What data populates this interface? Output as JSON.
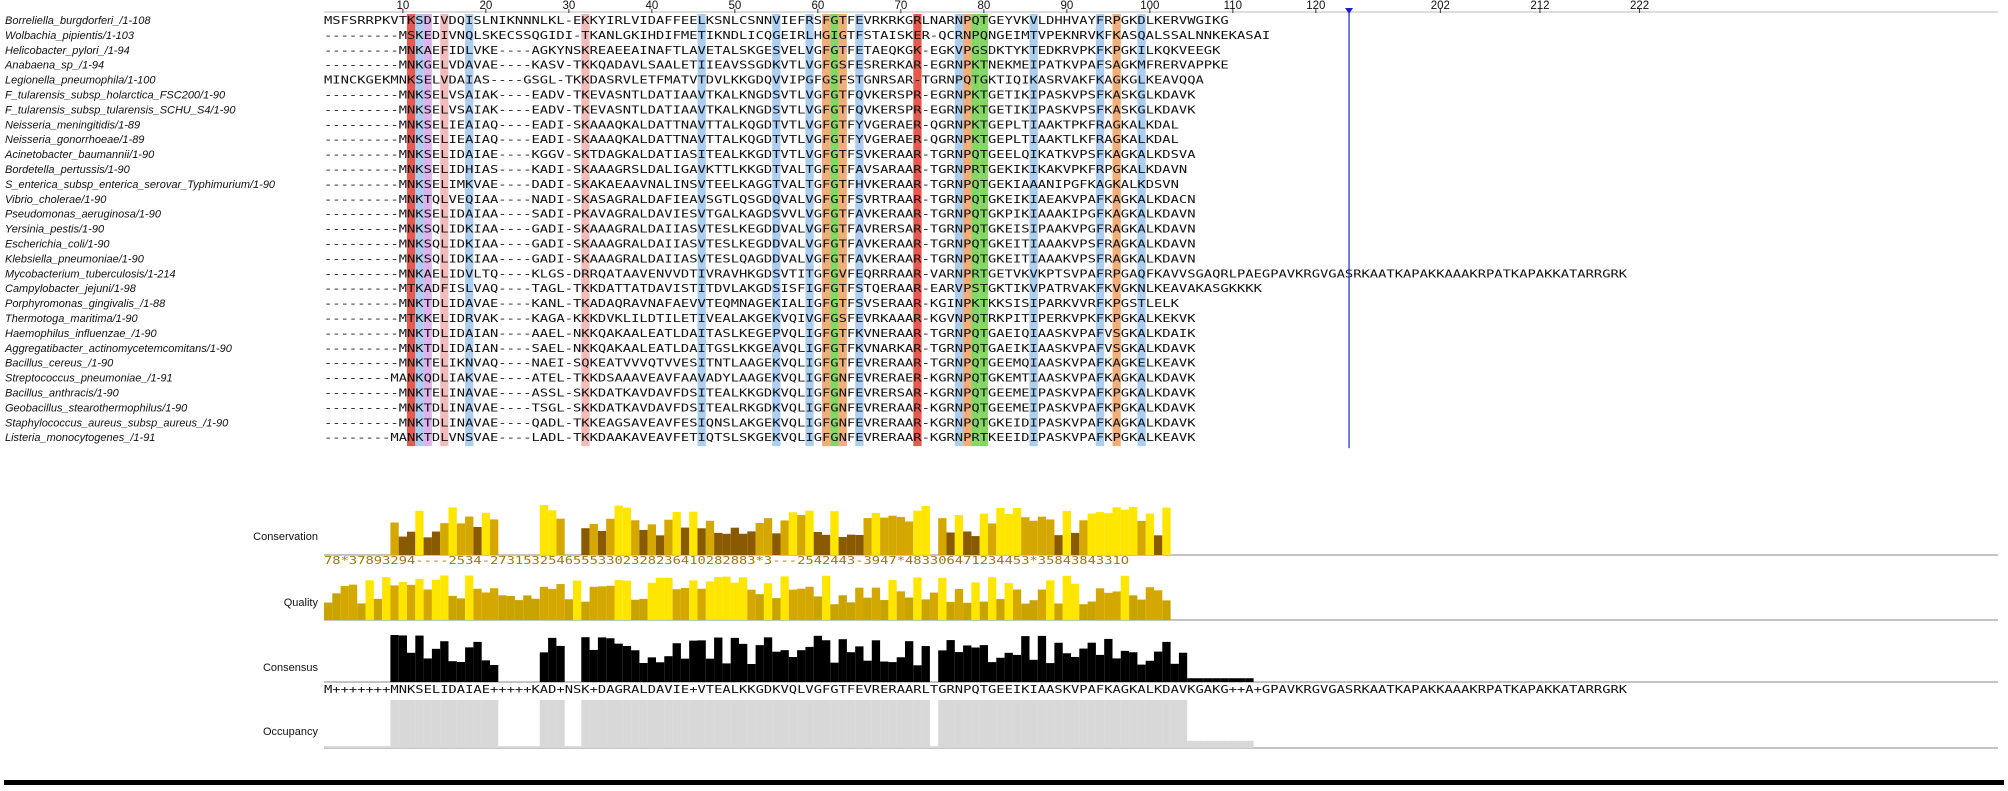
{
  "ruler": {
    "ticks": [
      "10",
      "20",
      "30",
      "40",
      "50",
      "60",
      "70",
      "80",
      "90",
      "100",
      "110",
      "120",
      "202",
      "212",
      "222"
    ]
  },
  "sequences": [
    {
      "name": "Borreliella_burgdorferi_/1-108",
      "seq": "MSFSRRPKVTKSDIVDQISLNIKNNNLKL-EKKYIRLVIDAFFEELKSNLCSNNVIEFRSFGTFEVRKRKGRLNARNPQTGEYVKVLDHHVAYFRPGKDLKERVWGIKG"
    },
    {
      "name": "Wolbachia_pipientis/1-103",
      "seq": "---------MSKEDIVNQLSKECSSQGIDI-TKANLGKIHDIFMETIKNDLICQGEIRLHGIGTFSTAISKER-QCRNPQNGEIMTVPEKNRVKFKASQALSSALNNKEKASAI"
    },
    {
      "name": "Helicobacter_pylori_/1-94",
      "seq": "---------MNKAEFIDLVKE----AGKYNSKREAEEAINAFTLAVETALSKGESVELVGFGTFETAEQKGK-EGKVPGSDKTYKTEDKRVPKFKPGKILKQKVEEGK"
    },
    {
      "name": "Anabaena_sp_/1-94",
      "seq": "---------MNKGELVDAVAE----KASV-TKKQADAVLSAALETIIEAVSSGDKVTLVGFGSFESRERKAR-EGRNPKTNEKMEIPATKVPAFSAGKMFRERVAPPKE"
    },
    {
      "name": "Legionella_pneumophila/1-100",
      "seq": "MINCKGEKMNKSELVDAIAS----GSGL-TKKDASRVLETFMATVTDVLKKGDQVVIPGFGSFSTGNRSAR-TGRNPQTGKTIQIKASRVAKFKAGKGLKEAVQQA"
    },
    {
      "name": "F_tularensis_subsp_holarctica_FSC200/1-90",
      "seq": "---------MNKSELVSAIAK----EADV-TKEVASNTLDATIAAVTKALKNGDSVTLVGFGTFQVKERSPR-EGRNPKTGETIKIPASKVPSFKASKGLKDAVK"
    },
    {
      "name": "F_tularensis_subsp_tularensis_SCHU_S4/1-90",
      "seq": "---------MNKSELVSAIAK----EADV-TKEVASNTLDATIAAVTKALKNGDSVTLVGFGTFQVKERSPR-EGRNPKTGETIKIPASKVPSFKASKGLKDAVK"
    },
    {
      "name": "Neisseria_meningitidis/1-89",
      "seq": "---------MNKSELIEAIAQ----EADI-SKAAAQKALDATTNAVTTALKQGDTVTLVGFGTFYVGERAER-QGRNPKTGEPLTIAAKTPKFRAGKALKDAL"
    },
    {
      "name": "Neisseria_gonorrhoeae/1-89",
      "seq": "---------MNKSELIEAIAQ----EADI-SKAAAQKALDATTNAVTTALKQGDTVTLVGFGTFYVGERAER-QGRNPKTGEPLTIAAKTLKFRAGKALKDAL"
    },
    {
      "name": "Acinetobacter_baumannii/1-90",
      "seq": "---------MNKSELIDAIAE----KGGV-SKTDAGKALDATIASITEALKKGDTVTLVGFGTFSVKERAAR-TGRNPQTGEELQIKATKVPSFKAGKALKDSVA"
    },
    {
      "name": "Bordetella_pertussis/1-90",
      "seq": "---------MNKSELIDHIAS----KADI-SKAAAGRSLDALIGAVKTTLKKGDTVALTGFGTFAVSARAAR-TGRNPRTGEKIKIKAKVPKFRPGKALKDAVN"
    },
    {
      "name": "S_enterica_subsp_enterica_serovar_Typhimurium/1-90",
      "seq": "---------MNKSELIMKVAE----DADI-SKAKAEAAVNALINSVTEELKAGGTVALTGFGTFHVKERAAR-TGRNPQTGEKIAAANIPGFKAGKALKDSVN"
    },
    {
      "name": "Vibrio_cholerae/1-90",
      "seq": "---------MNKTQLVEQIAA----NADI-SKASAGRALDAFIEAVSGTLQSGDQVALVGFGTFSVRTRAAR-TGRNPQTGKEIKIAEAKVPAFKAGKALKDACN"
    },
    {
      "name": "Pseudomonas_aeruginosa/1-90",
      "seq": "---------MNKSELIDAIAA----SADI-PKAVAGRALDAVIESVTGALKAGDSVVLVGFGTFAVKERAAR-TGRNPQTGKPIKIAAAKIPGFKAGKALKDAVN"
    },
    {
      "name": "Yersinia_pestis/1-90",
      "seq": "---------MNKSQLIDKIAA----GADI-SKAAAGRALDAIIASVTESLKEGDDVALVGFGTFAVRERSAR-TGRNPQTGKEISIPAAKVPGFRAGKALKDAVN"
    },
    {
      "name": "Escherichia_coli/1-90",
      "seq": "---------MNKSQLIDKIAA----GADI-SKAAAGRALDAIIASVTESLKEGDDVALVGFGTFAVKERAAR-TGRNPQTGKEITIAAAKVPSFRAGKALKDAVN"
    },
    {
      "name": "Klebsiella_pneumoniae/1-90",
      "seq": "---------MNKSQLIDKIAA----GADI-SKAAAGRALDAIIASVTESLQAGDDVALVGFGTFAVKERAAR-TGRNPQTGKEITIAAAKVPSFRAGKALKDAVN"
    },
    {
      "name": "Mycobacterium_tuberculosis/1-214",
      "seq": "---------MNKAELIDVLTQ----KLGS-DRRQATAAVENVVDTIVRAVHKGDSVTITGFGVFEQRRRAAR-VARNPRTGETVKVKPTSVPAFRPGAQFKAVVSGAQRLPAEGPAVKRGVGASRKAATKAPAKKAAAKRPATKAPAKKATARRGRK"
    },
    {
      "name": "Campylobacter_jejuni/1-98",
      "seq": "---------MTKADFISLVAQ----TAGL-TKKDATTATDAVISTITDVLAKGDSISFIGFGTFSTQERAAR-EARVPSTGKTIKVPATRVAKFKVGKNLKEAVAKASGKKKK"
    },
    {
      "name": "Porphyromonas_gingivalis_/1-88",
      "seq": "---------MNKTDLIDAVAE----KANL-TKADAQRAVNAFAEVVTEQMNAGEKIALIGFGTFSVSERAAR-KGINPKTKKSISIPARKVVRFKPGSTLELK"
    },
    {
      "name": "Thermotoga_maritima/1-90",
      "seq": "---------MTKKELIDRVAK----KAGA-KKKDVKLILDTILETIVEALAKGEKVQIVGFGSFEVRKAAAR-KGVNPQTRKPITIPERKVPKFKPGKALKEKVK"
    },
    {
      "name": "Haemophilus_influenzae_/1-90",
      "seq": "---------MNKTDLIDAIAN----AAEL-NKKQAKAALEATLDAITASLKEGEPVQLIGFGTFKVNERAAR-TGRNPQTGAEIQIAASKVPAFVSGKALKDAIK"
    },
    {
      "name": "Aggregatibacter_actinomycetemcomitans/1-90",
      "seq": "---------MNKTDLIDAIAN----SAEL-NKKQAKAALEATLDAITGSLKKGEAVQLIGFGTFKVNARKAR-TGRNPQTGAEIKIAASKVPAFVSGKALKDAVK"
    },
    {
      "name": "Bacillus_cereus_/1-90",
      "seq": "---------MNKTELIKNVAQ----NAEI-SQKEATVVVQTVVESITNTLAAGEKVQLIGFGTFEVRERAAR-TGRNPQTGEEMQIAASKVPAFKAGKELKEAVK"
    },
    {
      "name": "Streptococcus_pneumoniae_/1-91",
      "seq": "--------MANKQDLIAKVAE----ATEL-TKKDSAAAVEAVFAAVADYLAAGEKVQLIGFGNFEVRERAER-KGRNPQTGKEMTIAASKVPAFKAGKALKDAVK"
    },
    {
      "name": "Bacillus_anthracis/1-90",
      "seq": "---------MNKTELINAVAE----ASSL-SKKDATKAVDAVFDSITEALKKGDKVQLIGFGNFEVRERSAR-KGRNPQTGEEMEIPASKVPAFKPGKALKDAVK"
    },
    {
      "name": "Geobacillus_stearothermophilus/1-90",
      "seq": "---------MNKTDLINAVAE----TSGL-SKKDATKAVDAVFDSITEALRKGDKVQLIGFGNFEVRERAAR-KGRNPQTGEEMEIPASKVPAFKPGKALKDAVK"
    },
    {
      "name": "Staphylococcus_aureus_subsp_aureus_/1-90",
      "seq": "---------MNKTDLINAVAE----QADL-TKKEAGSAVEAVFESIQNSLAKGEKVQLIGFGNFEVRERAAR-KGRNPQTGKEIDIPASKVPAFKAGKALKDAVK"
    },
    {
      "name": "Listeria_monocytogenes_/1-91",
      "seq": "--------MANKTDLVNSVAE----LADL-TKKDAAKAVEAVFETIQTSLSKGEKVQLIGFGNFEVRERAAR-KGRNPRTKEEIDIPASKVPAFKPGKALKEAVK"
    }
  ],
  "annotations": {
    "conservation_label": "Conservation",
    "conservation_digits": "78*37893294----2534-27315325465553302328236410282883*3---2542443-3947*483306471234453*3584384331O",
    "quality_label": "Quality",
    "consensus_label": "Consensus",
    "consensus_seq": "M+++++++MNKSELIDAIAE+++++KAD+NSK+DAGRALDAVIE+VTEALKKGDKVQLVGFGTFEVRERAARLTGRNPQTGEEIKIAASKVPAFKAGKALKDAVKGAKG++A+GPAVKRGVGASRKAATKAPAKKAAAKRPATKAPAKKATARRGRK",
    "occupancy_label": "Occupancy"
  },
  "colors": {
    "cys_red": "#e33c2f",
    "gly_orange": "#f0a060",
    "hydrophobic_blue": "#9cc6ee",
    "charged_pink": "#f0b0b0",
    "polar_green": "#6fcf4a",
    "purple": "#d6a6e6",
    "conservation_dark": "#8a5a00",
    "conservation_bright": "#ffe600",
    "consensus": "#000000",
    "occupancy": "#d8d8d8",
    "cursor": "#1f1fcc"
  }
}
